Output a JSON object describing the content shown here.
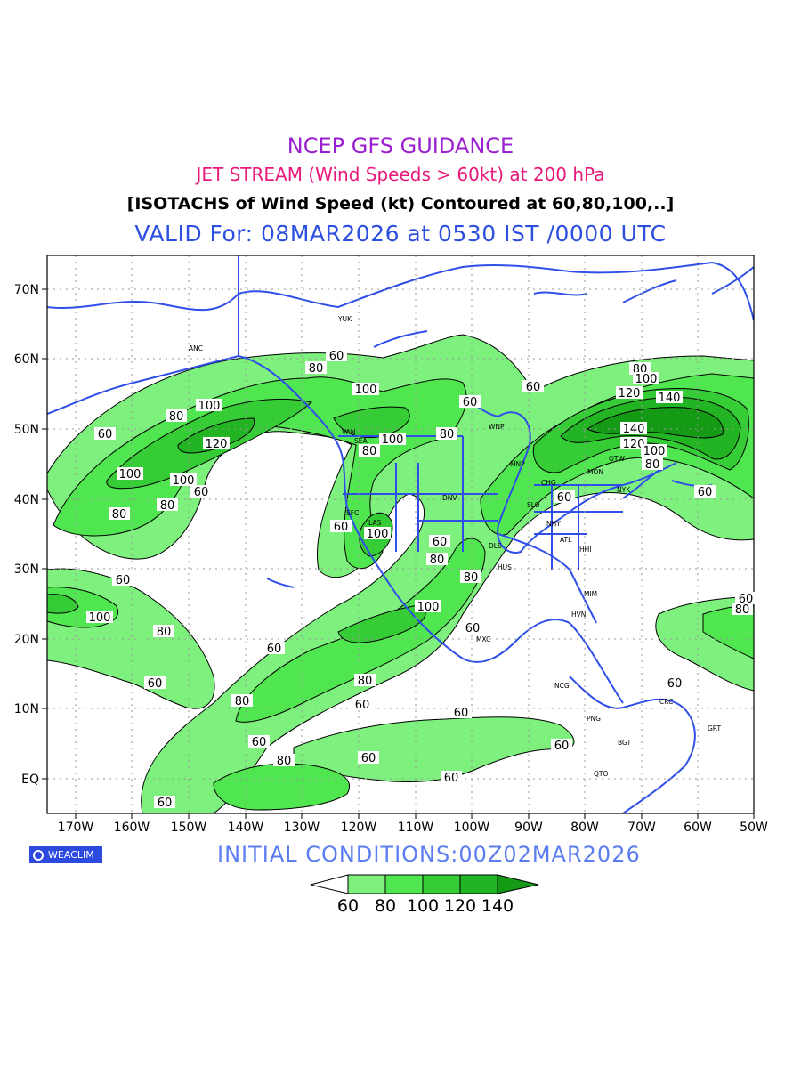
{
  "titles": {
    "line1": "NCEP GFS GUIDANCE",
    "line2": "JET STREAM (Wind Speeds > 60kt) at 200 hPa",
    "line3": "[ISOTACHS of Wind Speed (kt) Contoured at 60,80,100,..]",
    "line4": "VALID For: 08MAR2026 at 0530 IST /0000 UTC"
  },
  "colors": {
    "shade_60": "#7ef07e",
    "shade_80": "#4fe64f",
    "shade_100": "#35cc35",
    "shade_120": "#22b422",
    "shade_140": "#149a14",
    "coast": "#2f4fe8",
    "title1": "#9a1fd0",
    "title2": "#e8197a",
    "title4": "#2d4fe0"
  },
  "axes": {
    "lon_labels": [
      "170W",
      "160W",
      "150W",
      "140W",
      "130W",
      "120W",
      "110W",
      "100W",
      "90W",
      "80W",
      "70W",
      "60W",
      "50W"
    ],
    "lat_labels": [
      "70N",
      "60N",
      "50N",
      "40N",
      "30N",
      "20N",
      "10N",
      "EQ"
    ]
  },
  "contour_labels": [
    "60",
    "80",
    "100",
    "120",
    "140"
  ],
  "cities": [
    "ANC",
    "YUK",
    "VAN",
    "SEA",
    "SFC",
    "LAS",
    "DNV",
    "WNP",
    "MNP",
    "CHG",
    "SLO",
    "DLS",
    "HUS",
    "ATL",
    "NHY",
    "NYK",
    "OTW",
    "MON",
    "HHI",
    "MIM",
    "HVN",
    "MXC",
    "NCG",
    "PNG",
    "BGT",
    "QTO",
    "CRC",
    "GRT"
  ],
  "bottom": {
    "initial": "INITIAL CONDITIONS:00Z02MAR2026",
    "logo": "WEACLIM"
  },
  "legend": {
    "labels": [
      "60",
      "80",
      "100",
      "120",
      "140"
    ]
  }
}
